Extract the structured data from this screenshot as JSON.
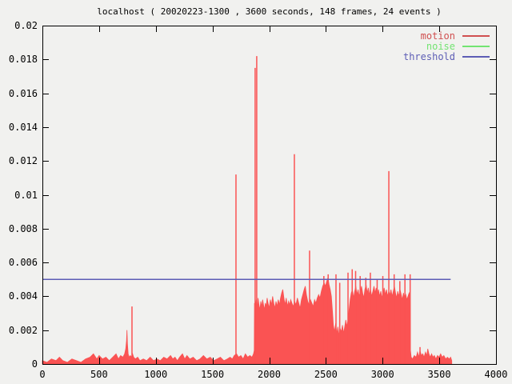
{
  "title": "localhost ( 20020223-1300 , 3600 seconds, 148 frames, 24 events )",
  "chart_data": {
    "type": "area",
    "title": "localhost ( 20020223-1300 , 3600 seconds, 148 frames, 24 events )",
    "xlabel": "",
    "ylabel": "",
    "xlim": [
      0,
      4000
    ],
    "ylim": [
      0,
      0.02
    ],
    "x_ticks": [
      "0",
      "500",
      "1000",
      "1500",
      "2000",
      "2500",
      "3000",
      "3500",
      "4000"
    ],
    "y_ticks": [
      "0",
      "0.002",
      "0.004",
      "0.006",
      "0.008",
      "0.01",
      "0.012",
      "0.014",
      "0.016",
      "0.018",
      "0.02"
    ],
    "grid": false,
    "legend_position": "top-right",
    "colors": {
      "background": "#f1f1ef",
      "border": "#000000",
      "text": "#000000",
      "motion": "#fa5353",
      "noise": "#72e472",
      "threshold": "#5d5db5"
    },
    "legend": [
      {
        "label": "motion",
        "color": "#d05050"
      },
      {
        "label": "noise",
        "color": "#72e472"
      },
      {
        "label": "threshold",
        "color": "#5d5db5"
      }
    ],
    "series": [
      {
        "name": "noise",
        "type": "line",
        "color": "#72e472",
        "points": [
          [
            0,
            0
          ],
          [
            3610,
            0
          ]
        ]
      },
      {
        "name": "motion",
        "type": "impulses-fill",
        "color": "#fa5353",
        "outline": [
          [
            0,
            0.0002
          ],
          [
            40,
            0.0001
          ],
          [
            80,
            0.0003
          ],
          [
            120,
            0.0002
          ],
          [
            150,
            0.0004
          ],
          [
            180,
            0.0002
          ],
          [
            220,
            0.0001
          ],
          [
            260,
            0.0003
          ],
          [
            300,
            0.0002
          ],
          [
            340,
            0.0001
          ],
          [
            380,
            0.0003
          ],
          [
            420,
            0.0004
          ],
          [
            450,
            0.0006
          ],
          [
            480,
            0.0003
          ],
          [
            500,
            0.0005
          ],
          [
            530,
            0.0003
          ],
          [
            560,
            0.0004
          ],
          [
            590,
            0.0002
          ],
          [
            620,
            0.0004
          ],
          [
            650,
            0.0006
          ],
          [
            670,
            0.0003
          ],
          [
            690,
            0.0005
          ],
          [
            710,
            0.0004
          ],
          [
            725,
            0.0006
          ],
          [
            735,
            0.0009
          ],
          [
            742,
            0.0014
          ],
          [
            746,
            0.002
          ],
          [
            750,
            0.0012
          ],
          [
            756,
            0.0006
          ],
          [
            765,
            0.0004
          ],
          [
            775,
            0.0005
          ],
          [
            785,
            0.0004
          ],
          [
            795,
            0.0006
          ],
          [
            805,
            0.0004
          ],
          [
            820,
            0.0003
          ],
          [
            840,
            0.0004
          ],
          [
            860,
            0.0002
          ],
          [
            890,
            0.0003
          ],
          [
            920,
            0.0002
          ],
          [
            950,
            0.0004
          ],
          [
            980,
            0.0002
          ],
          [
            1010,
            0.0003
          ],
          [
            1040,
            0.0002
          ],
          [
            1070,
            0.0004
          ],
          [
            1100,
            0.0003
          ],
          [
            1130,
            0.0005
          ],
          [
            1150,
            0.0003
          ],
          [
            1170,
            0.0004
          ],
          [
            1190,
            0.0002
          ],
          [
            1210,
            0.0004
          ],
          [
            1235,
            0.0006
          ],
          [
            1255,
            0.0003
          ],
          [
            1275,
            0.0005
          ],
          [
            1300,
            0.0003
          ],
          [
            1330,
            0.0004
          ],
          [
            1360,
            0.0002
          ],
          [
            1390,
            0.0003
          ],
          [
            1420,
            0.0005
          ],
          [
            1450,
            0.0003
          ],
          [
            1480,
            0.0004
          ],
          [
            1510,
            0.0002
          ],
          [
            1540,
            0.0003
          ],
          [
            1570,
            0.0004
          ],
          [
            1600,
            0.0002
          ],
          [
            1630,
            0.0003
          ],
          [
            1655,
            0.0004
          ],
          [
            1675,
            0.0003
          ],
          [
            1692,
            0.0005
          ],
          [
            1712,
            0.0006
          ],
          [
            1730,
            0.0004
          ],
          [
            1750,
            0.0005
          ],
          [
            1770,
            0.0003
          ],
          [
            1790,
            0.0006
          ],
          [
            1810,
            0.0004
          ],
          [
            1830,
            0.0005
          ],
          [
            1848,
            0.0004
          ],
          [
            1862,
            0.0006
          ],
          [
            1868,
            0.0008
          ],
          [
            1870,
            0.0036
          ],
          [
            1878,
            0.0034
          ],
          [
            1886,
            0.0038
          ],
          [
            1894,
            0.0033
          ],
          [
            1902,
            0.0039
          ],
          [
            1910,
            0.0035
          ],
          [
            1918,
            0.0032
          ],
          [
            1926,
            0.0037
          ],
          [
            1934,
            0.0034
          ],
          [
            1942,
            0.0038
          ],
          [
            1950,
            0.0035
          ],
          [
            1958,
            0.0032
          ],
          [
            1966,
            0.0036
          ],
          [
            1974,
            0.0034
          ],
          [
            1982,
            0.0039
          ],
          [
            1990,
            0.0036
          ],
          [
            2000,
            0.0033
          ],
          [
            2010,
            0.0038
          ],
          [
            2020,
            0.0035
          ],
          [
            2030,
            0.004
          ],
          [
            2040,
            0.0036
          ],
          [
            2050,
            0.0033
          ],
          [
            2060,
            0.0037
          ],
          [
            2070,
            0.0034
          ],
          [
            2080,
            0.0038
          ],
          [
            2090,
            0.0035
          ],
          [
            2100,
            0.0039
          ],
          [
            2110,
            0.0042
          ],
          [
            2120,
            0.0044
          ],
          [
            2130,
            0.0039
          ],
          [
            2140,
            0.0035
          ],
          [
            2150,
            0.0039
          ],
          [
            2160,
            0.0034
          ],
          [
            2170,
            0.0037
          ],
          [
            2180,
            0.0035
          ],
          [
            2190,
            0.0038
          ],
          [
            2200,
            0.0036
          ],
          [
            2212,
            0.0034
          ],
          [
            2224,
            0.0037
          ],
          [
            2236,
            0.0035
          ],
          [
            2248,
            0.0039
          ],
          [
            2260,
            0.0036
          ],
          [
            2272,
            0.0033
          ],
          [
            2284,
            0.0038
          ],
          [
            2296,
            0.0041
          ],
          [
            2308,
            0.0044
          ],
          [
            2318,
            0.0046
          ],
          [
            2328,
            0.0041
          ],
          [
            2340,
            0.0037
          ],
          [
            2352,
            0.0035
          ],
          [
            2364,
            0.0038
          ],
          [
            2376,
            0.0036
          ],
          [
            2388,
            0.0034
          ],
          [
            2400,
            0.0038
          ],
          [
            2412,
            0.0036
          ],
          [
            2424,
            0.0039
          ],
          [
            2436,
            0.0041
          ],
          [
            2448,
            0.0039
          ],
          [
            2460,
            0.0043
          ],
          [
            2472,
            0.0046
          ],
          [
            2484,
            0.0048
          ],
          [
            2496,
            0.0046
          ],
          [
            2508,
            0.0049
          ],
          [
            2518,
            0.0051
          ],
          [
            2528,
            0.0047
          ],
          [
            2538,
            0.0044
          ],
          [
            2548,
            0.004
          ],
          [
            2558,
            0.0031
          ],
          [
            2566,
            0.0023
          ],
          [
            2576,
            0.0019
          ],
          [
            2586,
            0.0024
          ],
          [
            2596,
            0.0018
          ],
          [
            2606,
            0.0022
          ],
          [
            2616,
            0.0017
          ],
          [
            2626,
            0.0021
          ],
          [
            2636,
            0.0019
          ],
          [
            2646,
            0.0023
          ],
          [
            2656,
            0.0018
          ],
          [
            2666,
            0.0022
          ],
          [
            2676,
            0.0026
          ],
          [
            2686,
            0.0022
          ],
          [
            2696,
            0.0027
          ],
          [
            2706,
            0.0033
          ],
          [
            2714,
            0.0038
          ],
          [
            2724,
            0.0042
          ],
          [
            2734,
            0.0044
          ],
          [
            2744,
            0.0039
          ],
          [
            2754,
            0.0043
          ],
          [
            2764,
            0.0046
          ],
          [
            2774,
            0.0041
          ],
          [
            2784,
            0.0044
          ],
          [
            2794,
            0.004
          ],
          [
            2804,
            0.0043
          ],
          [
            2814,
            0.0046
          ],
          [
            2824,
            0.0042
          ],
          [
            2834,
            0.0039
          ],
          [
            2844,
            0.0044
          ],
          [
            2854,
            0.0047
          ],
          [
            2864,
            0.0042
          ],
          [
            2874,
            0.0045
          ],
          [
            2884,
            0.0041
          ],
          [
            2894,
            0.0044
          ],
          [
            2904,
            0.004
          ],
          [
            2914,
            0.0043
          ],
          [
            2924,
            0.0046
          ],
          [
            2934,
            0.0042
          ],
          [
            2944,
            0.0045
          ],
          [
            2954,
            0.0041
          ],
          [
            2964,
            0.0044
          ],
          [
            2974,
            0.004
          ],
          [
            2984,
            0.0043
          ],
          [
            2994,
            0.0039
          ],
          [
            3004,
            0.0042
          ],
          [
            3014,
            0.0045
          ],
          [
            3024,
            0.0041
          ],
          [
            3034,
            0.0044
          ],
          [
            3044,
            0.004
          ],
          [
            3054,
            0.0043
          ],
          [
            3064,
            0.0041
          ],
          [
            3074,
            0.0044
          ],
          [
            3084,
            0.004
          ],
          [
            3094,
            0.0043
          ],
          [
            3104,
            0.0046
          ],
          [
            3114,
            0.0042
          ],
          [
            3124,
            0.0039
          ],
          [
            3134,
            0.0043
          ],
          [
            3144,
            0.004
          ],
          [
            3154,
            0.0044
          ],
          [
            3164,
            0.0041
          ],
          [
            3174,
            0.0038
          ],
          [
            3184,
            0.0042
          ],
          [
            3194,
            0.0039
          ],
          [
            3204,
            0.0041
          ],
          [
            3214,
            0.0038
          ],
          [
            3224,
            0.004
          ],
          [
            3234,
            0.0042
          ],
          [
            3242,
            0.0039
          ],
          [
            3246,
            0.0008
          ],
          [
            3252,
            0.0004
          ],
          [
            3264,
            0.0003
          ],
          [
            3280,
            0.0005
          ],
          [
            3296,
            0.0004
          ],
          [
            3308,
            0.0007
          ],
          [
            3320,
            0.0004
          ],
          [
            3330,
            0.0008
          ],
          [
            3342,
            0.0005
          ],
          [
            3354,
            0.0006
          ],
          [
            3366,
            0.0004
          ],
          [
            3378,
            0.0007
          ],
          [
            3390,
            0.0005
          ],
          [
            3398,
            0.0009
          ],
          [
            3408,
            0.0006
          ],
          [
            3420,
            0.0004
          ],
          [
            3432,
            0.0006
          ],
          [
            3444,
            0.0004
          ],
          [
            3456,
            0.0005
          ],
          [
            3470,
            0.0003
          ],
          [
            3484,
            0.0005
          ],
          [
            3498,
            0.0004
          ],
          [
            3512,
            0.0006
          ],
          [
            3526,
            0.0004
          ],
          [
            3540,
            0.0005
          ],
          [
            3556,
            0.0003
          ],
          [
            3572,
            0.0004
          ],
          [
            3588,
            0.0003
          ],
          [
            3600,
            0.0004
          ],
          [
            3610,
            0.0002
          ]
        ],
        "spikes": [
          [
            790,
            0.0034
          ],
          [
            1707,
            0.0112
          ],
          [
            1876,
            0.0175
          ],
          [
            1890,
            0.0182
          ],
          [
            2222,
            0.0124
          ],
          [
            2356,
            0.0067
          ],
          [
            2482,
            0.0052
          ],
          [
            2520,
            0.0053
          ],
          [
            2589,
            0.0053
          ],
          [
            2622,
            0.0048
          ],
          [
            2695,
            0.0054
          ],
          [
            2732,
            0.0056
          ],
          [
            2762,
            0.0055
          ],
          [
            2802,
            0.0052
          ],
          [
            2852,
            0.0051
          ],
          [
            2892,
            0.0054
          ],
          [
            2952,
            0.005
          ],
          [
            3002,
            0.0052
          ],
          [
            3055,
            0.0114
          ],
          [
            3102,
            0.0053
          ],
          [
            3152,
            0.0049
          ],
          [
            3197,
            0.0053
          ],
          [
            3243,
            0.0053
          ],
          [
            3330,
            0.001
          ]
        ]
      },
      {
        "name": "threshold",
        "type": "line",
        "color": "#5d5db5",
        "points": [
          [
            0,
            0.005
          ],
          [
            3600,
            0.005
          ]
        ]
      }
    ]
  }
}
